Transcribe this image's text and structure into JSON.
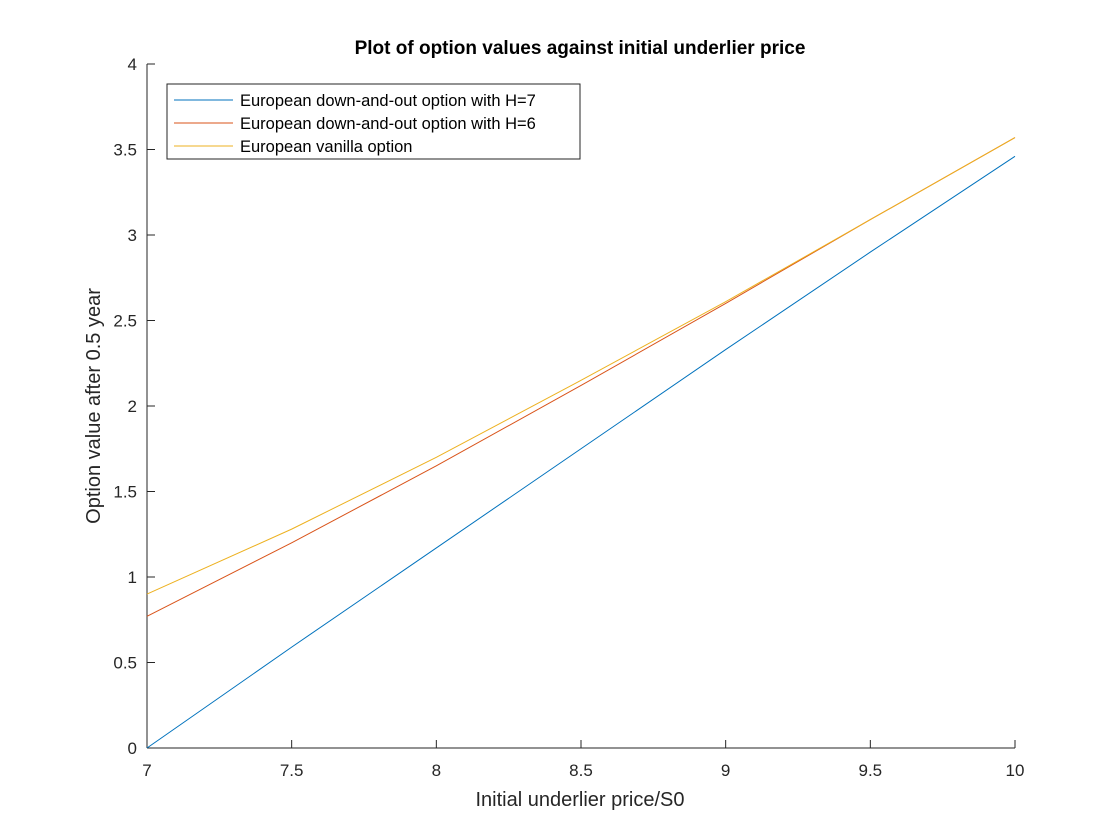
{
  "chart_data": {
    "type": "line",
    "title": "Plot of option values against initial underlier price",
    "xlabel": "Initial underlier price/S0",
    "ylabel": "Option value after 0.5 year",
    "xlim": [
      7,
      10
    ],
    "ylim": [
      0,
      4
    ],
    "xticks": [
      7,
      7.5,
      8,
      8.5,
      9,
      9.5,
      10
    ],
    "xtick_labels": [
      "7",
      "7.5",
      "8",
      "8.5",
      "9",
      "9.5",
      "10"
    ],
    "yticks": [
      0,
      0.5,
      1,
      1.5,
      2,
      2.5,
      3,
      3.5,
      4
    ],
    "ytick_labels": [
      "0",
      "0.5",
      "1",
      "1.5",
      "2",
      "2.5",
      "3",
      "3.5",
      "4"
    ],
    "grid": false,
    "legend_position": "top-left",
    "series": [
      {
        "name": "European down-and-out option with H=7",
        "color": "#0072BD",
        "x": [
          7,
          7.5,
          8,
          8.5,
          9,
          9.5,
          10
        ],
        "y": [
          0.0,
          0.59,
          1.17,
          1.75,
          2.33,
          2.9,
          3.46
        ]
      },
      {
        "name": "European down-and-out option with H=6",
        "color": "#D95319",
        "x": [
          7,
          7.5,
          8,
          8.5,
          9,
          9.5,
          10
        ],
        "y": [
          0.77,
          1.2,
          1.65,
          2.12,
          2.6,
          3.09,
          3.57
        ]
      },
      {
        "name": "European vanilla option",
        "color": "#EDB120",
        "x": [
          7,
          7.5,
          8,
          8.5,
          9,
          9.5,
          10
        ],
        "y": [
          0.9,
          1.28,
          1.7,
          2.15,
          2.61,
          3.09,
          3.57
        ]
      }
    ]
  }
}
